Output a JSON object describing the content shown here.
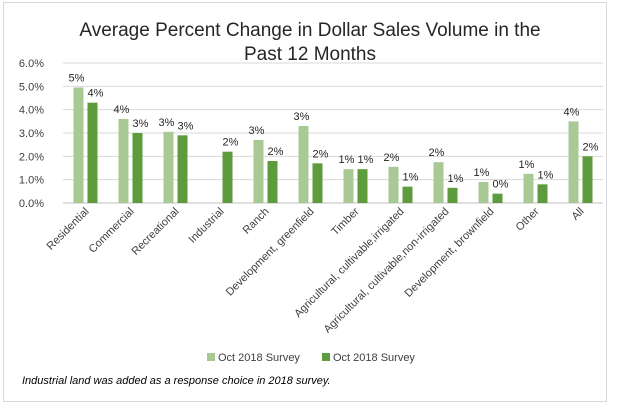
{
  "chart_data": {
    "type": "bar",
    "title_lines": [
      "Average Percent Change in Dollar Sales Volume in the",
      "Past 12 Months"
    ],
    "categories": [
      "Residential",
      "Commercial",
      "Recreational",
      "Industrial",
      "Ranch",
      "Development, greenfield",
      "Timber",
      "Agricultural, cultivable,irrigated",
      "Agricultural, cultivable,non-irrigated",
      "Development, brownfield",
      "Other",
      "All"
    ],
    "series": [
      {
        "name": "Oct 2018 Survey",
        "color": "#A9C994",
        "values": [
          4.95,
          3.6,
          3.05,
          null,
          2.7,
          3.3,
          1.45,
          1.55,
          1.75,
          0.9,
          1.25,
          3.5
        ],
        "labels": [
          "5%",
          "4%",
          "3%",
          "",
          "3%",
          "3%",
          "1%",
          "2%",
          "2%",
          "1%",
          "1%",
          "4%"
        ]
      },
      {
        "name": "Oct 2018 Survey",
        "color": "#5E9B3D",
        "values": [
          4.3,
          3.0,
          2.9,
          2.2,
          1.8,
          1.7,
          1.45,
          0.7,
          0.65,
          0.4,
          0.8,
          2.0
        ],
        "labels": [
          "4%",
          "3%",
          "3%",
          "2%",
          "2%",
          "2%",
          "1%",
          "1%",
          "1%",
          "0%",
          "1%",
          "2%"
        ]
      }
    ],
    "yticks": [
      "0.0%",
      "1.0%",
      "2.0%",
      "3.0%",
      "4.0%",
      "5.0%",
      "6.0%"
    ],
    "ylim": [
      0,
      6
    ],
    "grid": true,
    "legend": "bottom",
    "note": "Industrial land was added as a response choice in 2018 survey."
  }
}
